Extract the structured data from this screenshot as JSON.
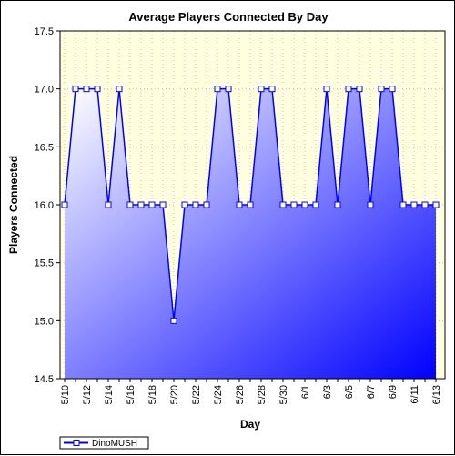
{
  "chart_data": {
    "type": "area",
    "title": "Average Players Connected By Day",
    "xlabel": "Day",
    "ylabel": "Players Connected",
    "ylim": [
      14.5,
      17.5
    ],
    "yticks": [
      "14.5",
      "15.0",
      "15.5",
      "16.0",
      "16.5",
      "17.0",
      "17.5"
    ],
    "x_tick_labels": [
      "5/10",
      "5/12",
      "5/14",
      "5/16",
      "5/18",
      "5/20",
      "5/22",
      "5/24",
      "5/26",
      "5/28",
      "5/30",
      "6/1",
      "6/3",
      "6/5",
      "6/7",
      "6/9",
      "6/11",
      "6/13"
    ],
    "x": [
      "5/10",
      "5/11",
      "5/12",
      "5/13",
      "5/14",
      "5/15",
      "5/16",
      "5/17",
      "5/18",
      "5/19",
      "5/20",
      "5/21",
      "5/22",
      "5/23",
      "5/24",
      "5/25",
      "5/26",
      "5/27",
      "5/28",
      "5/29",
      "5/30",
      "5/31",
      "6/1",
      "6/2",
      "6/3",
      "6/4",
      "6/5",
      "6/6",
      "6/7",
      "6/8",
      "6/9",
      "6/10",
      "6/11",
      "6/12",
      "6/13"
    ],
    "series": [
      {
        "name": "DinoMUSH",
        "values": [
          16,
          17,
          17,
          17,
          16,
          17,
          16,
          16,
          16,
          16,
          15,
          16,
          16,
          16,
          17,
          17,
          16,
          16,
          17,
          17,
          16,
          16,
          16,
          16,
          17,
          16,
          17,
          17,
          16,
          17,
          17,
          16,
          16,
          16,
          16
        ]
      }
    ],
    "grid": true,
    "legend_position": "bottom-left",
    "colors": {
      "plot_background": "#ffffe0",
      "series_line": "#0000ff",
      "fill_top": "#ffffff",
      "fill_bottom": "#0000ff"
    }
  }
}
